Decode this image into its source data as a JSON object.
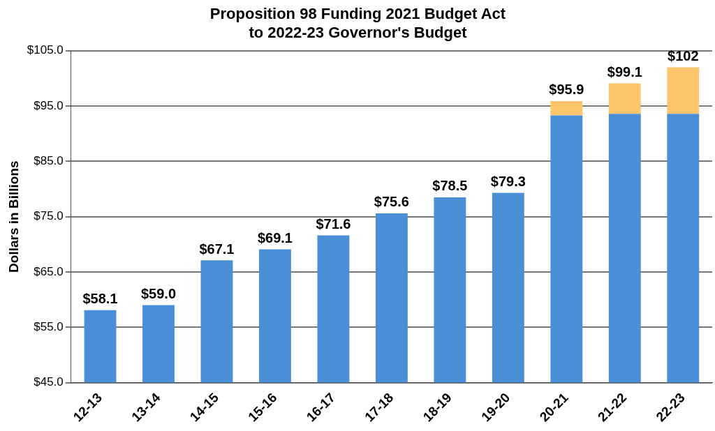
{
  "chart_data": {
    "type": "bar",
    "title": "Proposition 98 Funding 2021 Budget Act\nto 2022-23 Governor's Budget",
    "ylabel": "Dollars in Billions",
    "categories": [
      "12-13",
      "13-14",
      "14-15",
      "15-16",
      "16-17",
      "17-18",
      "18-19",
      "19-20",
      "20-21",
      "21-22",
      "22-23"
    ],
    "series": [
      {
        "color": "#4a8fd6",
        "values": [
          58.1,
          59.0,
          67.1,
          69.1,
          71.6,
          75.6,
          78.5,
          79.3,
          93.3,
          93.6,
          93.6
        ]
      },
      {
        "color": "#fcc56b",
        "values": [
          null,
          null,
          null,
          null,
          null,
          null,
          null,
          null,
          2.6,
          5.5,
          8.4
        ],
        "base": [
          null,
          null,
          null,
          null,
          null,
          null,
          null,
          null,
          93.3,
          93.6,
          93.6
        ]
      }
    ],
    "totals": [
      "$58.1",
      "$59.0",
      "$67.1",
      "$69.1",
      "$71.6",
      "$75.6",
      "$78.5",
      "$79.3",
      "$95.9",
      "$99.1",
      "$102"
    ],
    "ylim": [
      45,
      105
    ],
    "yticks": [
      {
        "value": 45,
        "label": "$45.0"
      },
      {
        "value": 55,
        "label": "$55.0"
      },
      {
        "value": 65,
        "label": "$65.0"
      },
      {
        "value": 75,
        "label": "$75.0"
      },
      {
        "value": 85,
        "label": "$85.0"
      },
      {
        "value": 95,
        "label": "$95.0"
      },
      {
        "value": 105,
        "label": "$105.0"
      }
    ],
    "grid": "y",
    "legend": false
  }
}
